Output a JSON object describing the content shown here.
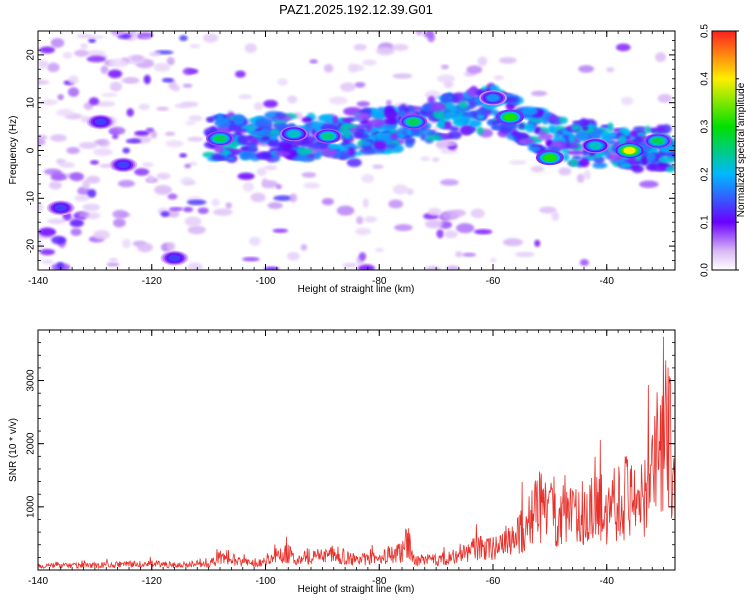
{
  "title": "PAZ1.2025.192.12.39.G01",
  "chart_data": [
    {
      "type": "heatmap",
      "xlabel": "Height of straight line (km)",
      "ylabel": "Frequency (Hz)",
      "xlim": [
        -140,
        -28
      ],
      "ylim": [
        -25,
        25
      ],
      "xticks": [
        -140,
        -120,
        -100,
        -80,
        -60,
        -40
      ],
      "xtick_labels": [
        "-140",
        "-120",
        "-100",
        "-80",
        "-60",
        "-40"
      ],
      "yticks": [
        -20,
        -10,
        0,
        10,
        20
      ],
      "ytick_labels": [
        "-20",
        "-10",
        "0",
        "10",
        "20"
      ],
      "colorbar": {
        "label": "Normalized spectral amplitude",
        "range": [
          0,
          0.5
        ],
        "ticks": [
          0,
          0.1,
          0.2,
          0.3,
          0.4,
          0.5
        ],
        "tick_labels": [
          "0.0",
          "0.1",
          "0.2",
          "0.3",
          "0.4",
          "0.5"
        ]
      },
      "ridge": [
        {
          "x": -110,
          "y": 2.5
        },
        {
          "x": -100,
          "y": 3
        },
        {
          "x": -90,
          "y": 2.5
        },
        {
          "x": -80,
          "y": 4
        },
        {
          "x": -74,
          "y": 5
        },
        {
          "x": -66,
          "y": 8
        },
        {
          "x": -60,
          "y": 9
        },
        {
          "x": -55,
          "y": 6
        },
        {
          "x": -50,
          "y": 3
        },
        {
          "x": -45,
          "y": 1.5
        },
        {
          "x": -40,
          "y": 1
        },
        {
          "x": -35,
          "y": 0.5
        },
        {
          "x": -28,
          "y": 0.5
        }
      ],
      "peaks": [
        {
          "x": -108,
          "y": 2.5,
          "value": 0.3
        },
        {
          "x": -95,
          "y": 3.5,
          "value": 0.25
        },
        {
          "x": -89,
          "y": 3,
          "value": 0.28
        },
        {
          "x": -74,
          "y": 6,
          "value": 0.3
        },
        {
          "x": -60,
          "y": 11,
          "value": 0.2
        },
        {
          "x": -57,
          "y": 7,
          "value": 0.35
        },
        {
          "x": -50,
          "y": -1.5,
          "value": 0.35
        },
        {
          "x": -42,
          "y": 1,
          "value": 0.25
        },
        {
          "x": -36,
          "y": 0,
          "value": 0.45
        },
        {
          "x": -31,
          "y": 2,
          "value": 0.3
        },
        {
          "x": -129,
          "y": 6,
          "value": 0.15
        },
        {
          "x": -136,
          "y": -12,
          "value": 0.15
        },
        {
          "x": -116,
          "y": -22.5,
          "value": 0.15
        },
        {
          "x": -125,
          "y": -3,
          "value": 0.15
        }
      ]
    },
    {
      "type": "line",
      "xlabel": "Height of straight line (km)",
      "ylabel": "SNR (10 * v/v)",
      "xlim": [
        -140,
        -28
      ],
      "ylim": [
        0,
        3800
      ],
      "xticks": [
        -140,
        -120,
        -100,
        -80,
        -60,
        -40
      ],
      "xtick_labels": [
        "-140",
        "-120",
        "-100",
        "-80",
        "-60",
        "-40"
      ],
      "yticks": [
        1000,
        2000,
        3000
      ],
      "ytick_labels": [
        "1000",
        "2000",
        "3000"
      ],
      "series": [
        {
          "color": "#e8302a",
          "x": [
            -140,
            -135,
            -130,
            -125,
            -120,
            -115,
            -110,
            -107,
            -105,
            -100,
            -96,
            -95,
            -92,
            -88,
            -84,
            -80,
            -76,
            -75,
            -74,
            -70,
            -66,
            -63,
            -60,
            -58,
            -56,
            -54,
            -52,
            -50,
            -48,
            -46,
            -44,
            -42,
            -40,
            -38,
            -36,
            -34,
            -32,
            -31,
            -30,
            -29.5,
            -29,
            -28.5,
            -28
          ],
          "y": [
            100,
            110,
            120,
            140,
            150,
            120,
            150,
            380,
            200,
            200,
            420,
            300,
            350,
            400,
            250,
            300,
            450,
            800,
            250,
            250,
            350,
            550,
            550,
            700,
            800,
            1200,
            1600,
            1500,
            1400,
            1300,
            1450,
            1500,
            1600,
            1800,
            1900,
            1900,
            2200,
            3000,
            2800,
            3800,
            3200,
            2800,
            2200
          ]
        }
      ]
    }
  ]
}
